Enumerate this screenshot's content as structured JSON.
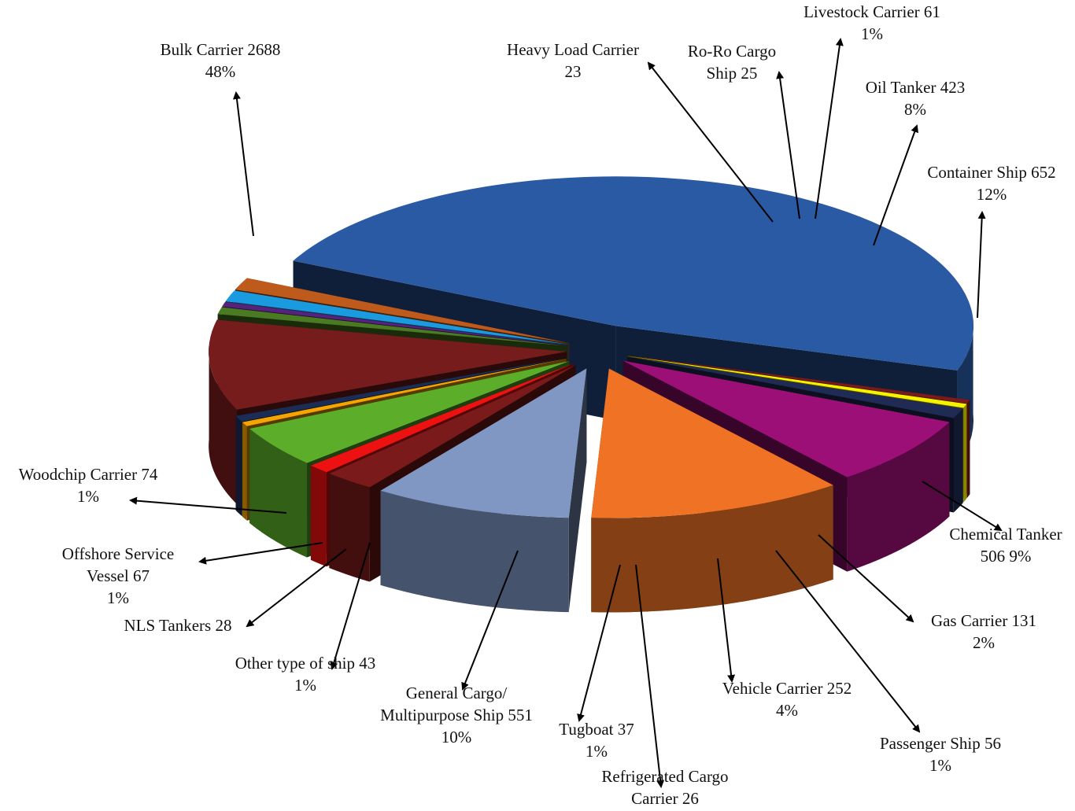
{
  "chart_data": {
    "type": "pie",
    "style": "3d-exploded",
    "title": "",
    "slices": [
      {
        "name": "Bulk Carrier",
        "value": 2688,
        "percent": "48%",
        "line1": "Bulk Carrier 2688",
        "line2": "48%",
        "color": "#2a5aa3"
      },
      {
        "name": "Heavy Load Carrier",
        "value": 23,
        "percent": "",
        "line1": "Heavy Load Carrier",
        "line2": "23",
        "color": "#7a1a1a"
      },
      {
        "name": "Ro-Ro Cargo Ship",
        "value": 25,
        "percent": "",
        "line1": "Ro-Ro Cargo",
        "line2": "Ship 25",
        "color": "#f7f200"
      },
      {
        "name": "Livestock Carrier",
        "value": 61,
        "percent": "1%",
        "line1": "Livestock Carrier 61",
        "line2": "1%",
        "color": "#1f2a55"
      },
      {
        "name": "Oil Tanker",
        "value": 423,
        "percent": "8%",
        "line1": "Oil Tanker 423",
        "line2": "8%",
        "color": "#9c0f77"
      },
      {
        "name": "Container Ship",
        "value": 652,
        "percent": "12%",
        "line1": "Container Ship 652",
        "line2": "12%",
        "color": "#f07224"
      },
      {
        "name": "Chemical Tanker",
        "value": 506,
        "percent": "9%",
        "line1": "Chemical Tanker",
        "line2": "506      9%",
        "color": "#8097c4"
      },
      {
        "name": "Gas Carrier",
        "value": 131,
        "percent": "2%",
        "line1": "Gas Carrier 131",
        "line2": "2%",
        "color": "#7a1a1a"
      },
      {
        "name": "Passenger Ship",
        "value": 56,
        "percent": "1%",
        "line1": "Passenger Ship 56",
        "line2": "1%",
        "color": "#ee1111"
      },
      {
        "name": "Vehicle Carrier",
        "value": 252,
        "percent": "4%",
        "line1": "Vehicle Carrier 252",
        "line2": "4%",
        "color": "#5cae2a"
      },
      {
        "name": "Refrigerated Cargo Carrier",
        "value": 26,
        "percent": "",
        "line1": "Refrigerated Cargo",
        "line2": "Carrier 26",
        "color": "#f6a400"
      },
      {
        "name": "Tugboat",
        "value": 37,
        "percent": "1%",
        "line1": "Tugboat 37",
        "line2": "1%",
        "color": "#1b2c55"
      },
      {
        "name": "General Cargo/ Multipurpose Ship",
        "value": 551,
        "percent": "10%",
        "line1": "General Cargo/",
        "line2": "Multipurpose Ship 551",
        "line3": "10%",
        "color": "#761c1c"
      },
      {
        "name": "Other type of ship",
        "value": 43,
        "percent": "1%",
        "line1": "Other type of ship 43",
        "line2": "1%",
        "color": "#4a7a22"
      },
      {
        "name": "NLS Tankers",
        "value": 28,
        "percent": "",
        "line1": "NLS Tankers 28",
        "line2": "",
        "color": "#55237d"
      },
      {
        "name": "Offshore Service Vessel",
        "value": 67,
        "percent": "1%",
        "line1": "Offshore Service",
        "line2": "Vessel 67",
        "line3": "1%",
        "color": "#1a9be0"
      },
      {
        "name": "Woodchip Carrier",
        "value": 74,
        "percent": "1%",
        "line1": "Woodchip Carrier 74",
        "line2": "1%",
        "color": "#bd5a1c"
      }
    ]
  }
}
